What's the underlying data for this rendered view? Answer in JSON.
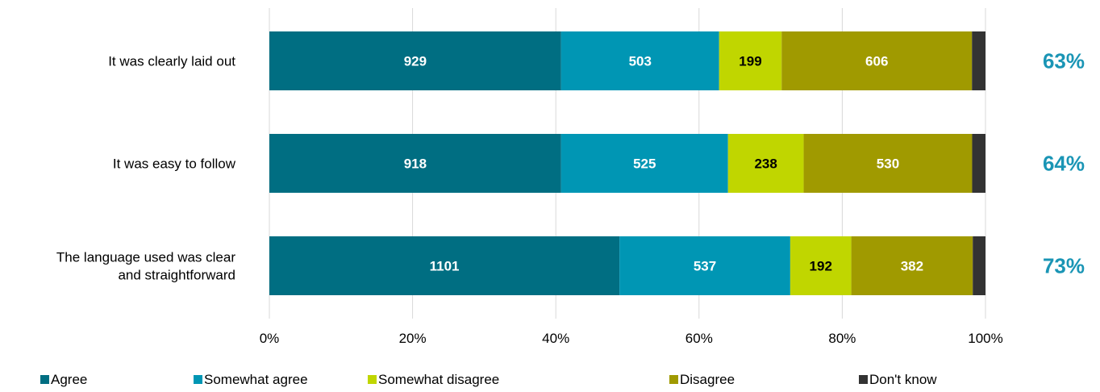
{
  "chart_data": {
    "type": "bar",
    "orientation": "horizontal",
    "stacked": true,
    "normalized": true,
    "categories": [
      [
        "It was clearly laid out"
      ],
      [
        "It was easy to follow"
      ],
      [
        "The language used was clear",
        "and straightforward"
      ]
    ],
    "series": [
      {
        "name": "Agree",
        "color": "#006e82",
        "values": [
          929,
          918,
          1101
        ],
        "label_color": "#ffffff"
      },
      {
        "name": "Somewhat agree",
        "color": "#0096b4",
        "values": [
          503,
          525,
          537
        ],
        "label_color": "#ffffff"
      },
      {
        "name": "Somewhat disagree",
        "color": "#c0d600",
        "values": [
          199,
          238,
          192
        ],
        "label_color": "#000000"
      },
      {
        "name": "Disagree",
        "color": "#a09a00",
        "values": [
          606,
          530,
          382
        ],
        "label_color": "#ffffff"
      },
      {
        "name": "Don't know",
        "color": "#333333",
        "values": [
          43,
          42,
          40
        ],
        "label_color": "#ffffff",
        "show_label": false
      }
    ],
    "totals": [
      "63%",
      "64%",
      "73%"
    ],
    "totals_color": "#1a95b5",
    "x_ticks": [
      "0%",
      "20%",
      "40%",
      "60%",
      "80%",
      "100%"
    ],
    "xlim": [
      0,
      100
    ],
    "grid": true,
    "legend_position": "bottom"
  }
}
